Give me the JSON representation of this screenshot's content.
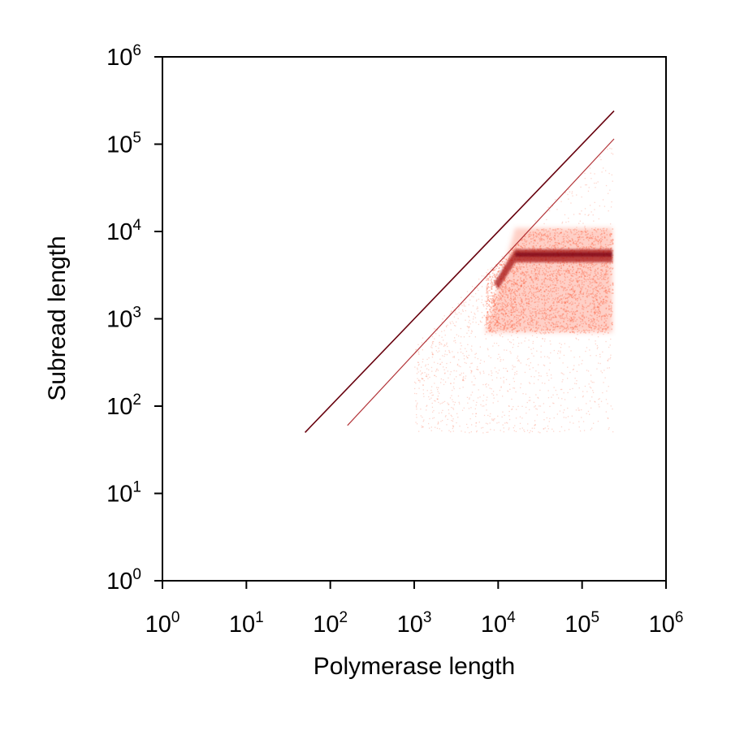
{
  "chart_data": {
    "type": "heatmap",
    "title": "",
    "xlabel": "Polymerase length",
    "ylabel": "Subread length",
    "x_scale": "log",
    "y_scale": "log",
    "xlim": [
      1,
      1000000
    ],
    "ylim": [
      1,
      1000000
    ],
    "x_tick_labels": [
      "10^0",
      "10^1",
      "10^2",
      "10^3",
      "10^4",
      "10^5",
      "10^6"
    ],
    "y_tick_labels": [
      "10^0",
      "10^1",
      "10^2",
      "10^3",
      "10^4",
      "10^5",
      "10^6"
    ],
    "grid": false,
    "colormap": "Reds",
    "colors": {
      "light": "#fee0d2",
      "mid": "#fb6a4a",
      "dark": "#a50f15",
      "darkest": "#67000d"
    },
    "density_features": [
      {
        "feature": "diagonal line y = x",
        "x_range": [
          50,
          240000
        ],
        "y_range": [
          50,
          240000
        ],
        "intensity": "high"
      },
      {
        "feature": "diagonal line y = x / 2",
        "x_range": [
          160,
          240000
        ],
        "y_range": [
          60,
          115000
        ],
        "intensity": "medium"
      },
      {
        "feature": "plateau band",
        "x_range": [
          16000,
          230000
        ],
        "y_value": 5500,
        "intensity": "very high"
      },
      {
        "feature": "broad cloud",
        "x_range": [
          7000,
          230000
        ],
        "y_range": [
          700,
          11000
        ],
        "intensity": "medium"
      },
      {
        "feature": "sparse scatter",
        "x_range": [
          1000,
          230000
        ],
        "y_range": [
          50,
          100000
        ],
        "intensity": "low"
      }
    ]
  }
}
